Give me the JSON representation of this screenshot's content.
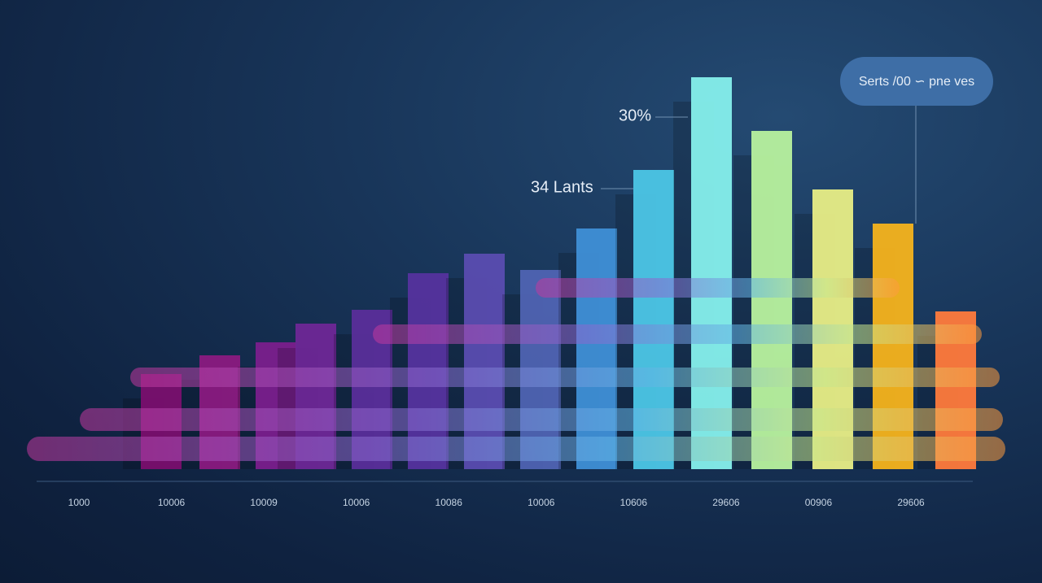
{
  "chart_data": {
    "type": "bar",
    "series": [
      {
        "name": "Serts /00 ∽ pne ves",
        "values": [
          117,
          140,
          156,
          179,
          196,
          241,
          265,
          245,
          296,
          368,
          482,
          416,
          344,
          302,
          194
        ],
        "colors": [
          "#7a0f6e",
          "#8a1a80",
          "#7a1f8c",
          "#6e2796",
          "#5a2e9a",
          "#55339e",
          "#5a4cb0",
          "#4f63b2",
          "#3f8fd6",
          "#4cc6e6",
          "#86f0ec",
          "#b8f29e",
          "#e8ee86",
          "#f5b31c",
          "#ff7a3c"
        ]
      }
    ],
    "x_tick_labels": [
      "1000",
      "10006",
      "10009",
      "10006",
      "10086",
      "10006",
      "10606",
      "29606",
      "00906",
      "29606"
    ],
    "annotations": [
      "30%",
      "34 Lants"
    ],
    "ylim": [
      0,
      500
    ]
  }
}
